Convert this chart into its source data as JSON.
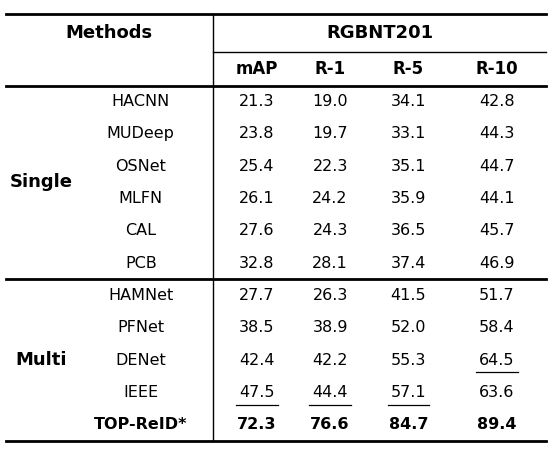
{
  "title": "RGBNT201",
  "col_headers": [
    "mAP",
    "R-1",
    "R-5",
    "R-10"
  ],
  "group1_label": "Single",
  "group2_label": "Multi",
  "rows": [
    {
      "method": "HACNN",
      "group": "Single",
      "values": [
        "21.3",
        "19.0",
        "34.1",
        "42.8"
      ],
      "bold": [
        false,
        false,
        false,
        false
      ],
      "underline": [
        false,
        false,
        false,
        false
      ]
    },
    {
      "method": "MUDeep",
      "group": "Single",
      "values": [
        "23.8",
        "19.7",
        "33.1",
        "44.3"
      ],
      "bold": [
        false,
        false,
        false,
        false
      ],
      "underline": [
        false,
        false,
        false,
        false
      ]
    },
    {
      "method": "OSNet",
      "group": "Single",
      "values": [
        "25.4",
        "22.3",
        "35.1",
        "44.7"
      ],
      "bold": [
        false,
        false,
        false,
        false
      ],
      "underline": [
        false,
        false,
        false,
        false
      ]
    },
    {
      "method": "MLFN",
      "group": "Single",
      "values": [
        "26.1",
        "24.2",
        "35.9",
        "44.1"
      ],
      "bold": [
        false,
        false,
        false,
        false
      ],
      "underline": [
        false,
        false,
        false,
        false
      ]
    },
    {
      "method": "CAL",
      "group": "Single",
      "values": [
        "27.6",
        "24.3",
        "36.5",
        "45.7"
      ],
      "bold": [
        false,
        false,
        false,
        false
      ],
      "underline": [
        false,
        false,
        false,
        false
      ]
    },
    {
      "method": "PCB",
      "group": "Single",
      "values": [
        "32.8",
        "28.1",
        "37.4",
        "46.9"
      ],
      "bold": [
        false,
        false,
        false,
        false
      ],
      "underline": [
        false,
        false,
        false,
        false
      ]
    },
    {
      "method": "HAMNet",
      "group": "Multi",
      "values": [
        "27.7",
        "26.3",
        "41.5",
        "51.7"
      ],
      "bold": [
        false,
        false,
        false,
        false
      ],
      "underline": [
        false,
        false,
        false,
        false
      ]
    },
    {
      "method": "PFNet",
      "group": "Multi",
      "values": [
        "38.5",
        "38.9",
        "52.0",
        "58.4"
      ],
      "bold": [
        false,
        false,
        false,
        false
      ],
      "underline": [
        false,
        false,
        false,
        false
      ]
    },
    {
      "method": "DENet",
      "group": "Multi",
      "values": [
        "42.4",
        "42.2",
        "55.3",
        "64.5"
      ],
      "bold": [
        false,
        false,
        false,
        false
      ],
      "underline": [
        false,
        false,
        false,
        true
      ]
    },
    {
      "method": "IEEE",
      "group": "Multi",
      "values": [
        "47.5",
        "44.4",
        "57.1",
        "63.6"
      ],
      "bold": [
        false,
        false,
        false,
        false
      ],
      "underline": [
        true,
        true,
        true,
        false
      ]
    },
    {
      "method": "TOP-ReID*",
      "group": "Multi",
      "values": [
        "72.3",
        "76.6",
        "84.7",
        "89.4"
      ],
      "bold": [
        true,
        true,
        true,
        true
      ],
      "underline": [
        false,
        false,
        false,
        false
      ]
    }
  ],
  "background_color": "#ffffff",
  "text_color": "#000000",
  "line_color": "#000000",
  "figsize": [
    5.52,
    4.5
  ],
  "dpi": 100,
  "fontsize_data": 11.5,
  "fontsize_header": 13,
  "fontsize_subheader": 12,
  "lw_thick": 2.0,
  "lw_thin": 1.0
}
